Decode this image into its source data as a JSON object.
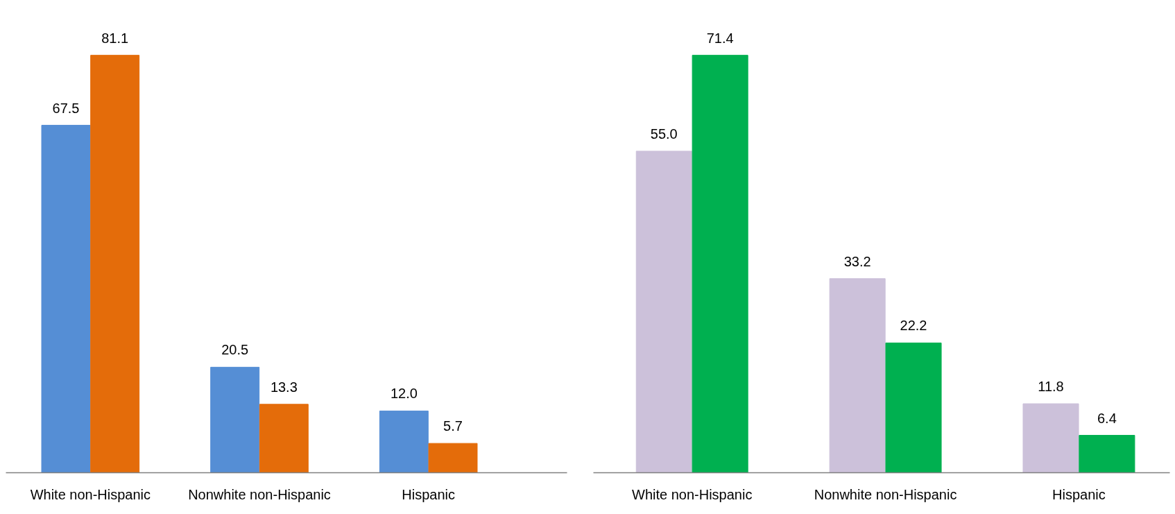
{
  "chart_data": [
    {
      "type": "bar",
      "categories": [
        "White non-Hispanic",
        "Nonwhite non-Hispanic",
        "Hispanic"
      ],
      "tick_labels": "x",
      "series": [
        {
          "color": "#558ed5",
          "values": [
            67.5,
            20.5,
            12.0
          ],
          "value_labels": [
            "67.5",
            "20.5",
            "12.0"
          ]
        },
        {
          "color": "#e46c0a",
          "values": [
            81.1,
            13.3,
            5.7
          ],
          "value_labels": [
            "81.1",
            "13.3",
            "5.7"
          ]
        }
      ]
    },
    {
      "type": "bar",
      "categories": [
        "White non-Hispanic",
        "Nonwhite non-Hispanic",
        "Hispanic"
      ],
      "tick_labels": "x",
      "series": [
        {
          "color": "#ccc1da",
          "values": [
            55.0,
            33.2,
            11.8
          ],
          "value_labels": [
            "55.0",
            "33.2",
            "11.8"
          ]
        },
        {
          "color": "#00b050",
          "values": [
            71.4,
            22.2,
            6.4
          ],
          "value_labels": [
            "71.4",
            "22.2",
            "6.4"
          ]
        }
      ]
    }
  ]
}
